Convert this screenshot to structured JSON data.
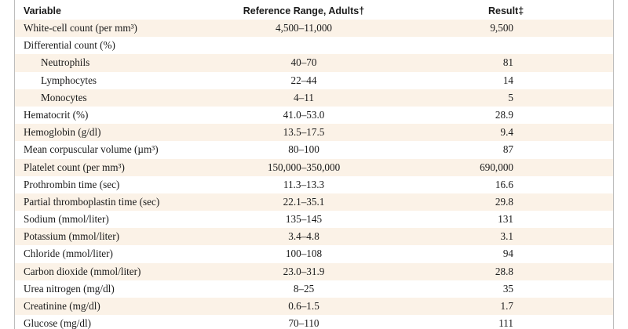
{
  "header": {
    "variable": "Variable",
    "reference": "Reference Range, Adults†",
    "result": "Result‡"
  },
  "rows": [
    {
      "label": "White-cell count (per mm³)",
      "reference": "4,500–11,000",
      "result": "9,500"
    },
    {
      "label": "Differential count (%)",
      "reference": "",
      "result": ""
    },
    {
      "label": "Neutrophils",
      "reference": "40–70",
      "result": "81"
    },
    {
      "label": "Lymphocytes",
      "reference": "22–44",
      "result": "14"
    },
    {
      "label": "Monocytes",
      "reference": "4–11",
      "result": "5"
    },
    {
      "label": "Hematocrit (%)",
      "reference": "41.0–53.0",
      "result": "28.9"
    },
    {
      "label": "Hemoglobin (g/dl)",
      "reference": "13.5–17.5",
      "result": "9.4"
    },
    {
      "label": "Mean corpuscular volume (µm³)",
      "reference": "80–100",
      "result": "87"
    },
    {
      "label": "Platelet count (per mm³)",
      "reference": "150,000–350,000",
      "result": "690,000"
    },
    {
      "label": "Prothrombin time (sec)",
      "reference": "11.3–13.3",
      "result": "16.6"
    },
    {
      "label": "Partial thromboplastin time (sec)",
      "reference": "22.1–35.1",
      "result": "29.8"
    },
    {
      "label": "Sodium (mmol/liter)",
      "reference": "135–145",
      "result": "131"
    },
    {
      "label": "Potassium (mmol/liter)",
      "reference": "3.4–4.8",
      "result": "3.1"
    },
    {
      "label": "Chloride (mmol/liter)",
      "reference": "100–108",
      "result": "94"
    },
    {
      "label": "Carbon dioxide (mmol/liter)",
      "reference": "23.0–31.9",
      "result": "28.8"
    },
    {
      "label": "Urea nitrogen (mg/dl)",
      "reference": "8–25",
      "result": "35"
    },
    {
      "label": "Creatinine (mg/dl)",
      "reference": "0.6–1.5",
      "result": "1.7"
    },
    {
      "label": "Glucose (mg/dl)",
      "reference": "70–110",
      "result": "111"
    }
  ]
}
